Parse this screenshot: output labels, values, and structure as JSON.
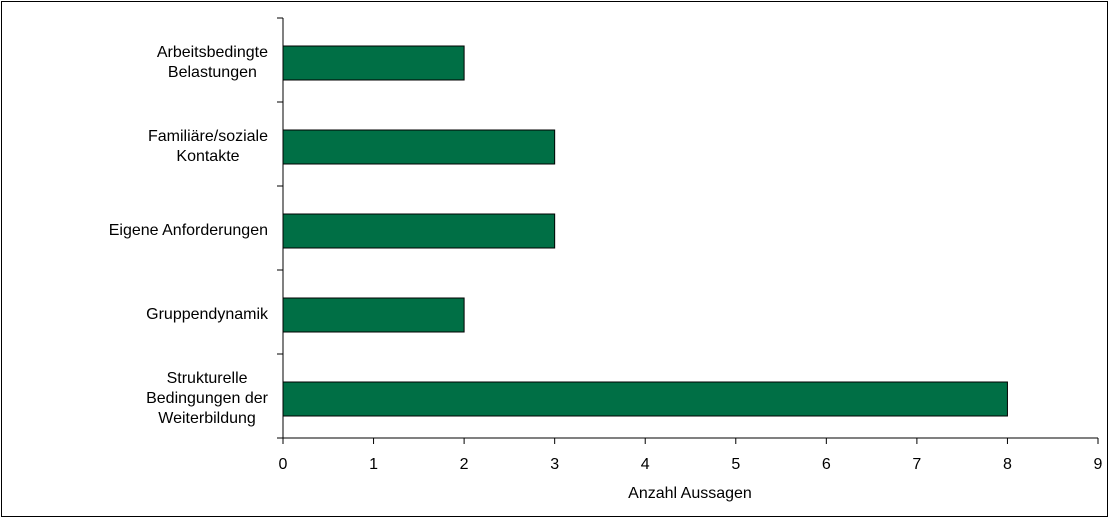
{
  "chart_data": {
    "type": "bar",
    "orientation": "horizontal",
    "categories": [
      "Arbeitsbedingte\nBelastungen",
      "Familiäre/soziale\nKontakte",
      "Eigene Anforderungen",
      "Gruppendynamik",
      "Strukturelle\nBedingungen der\nWeiterbildung"
    ],
    "values": [
      2,
      3,
      3,
      2,
      8
    ],
    "color": "#006f45",
    "xlabel": "Anzahl Aussagen",
    "xlim": [
      0,
      9
    ],
    "xticks": [
      0,
      1,
      2,
      3,
      4,
      5,
      6,
      7,
      8,
      9
    ],
    "grid": false
  }
}
